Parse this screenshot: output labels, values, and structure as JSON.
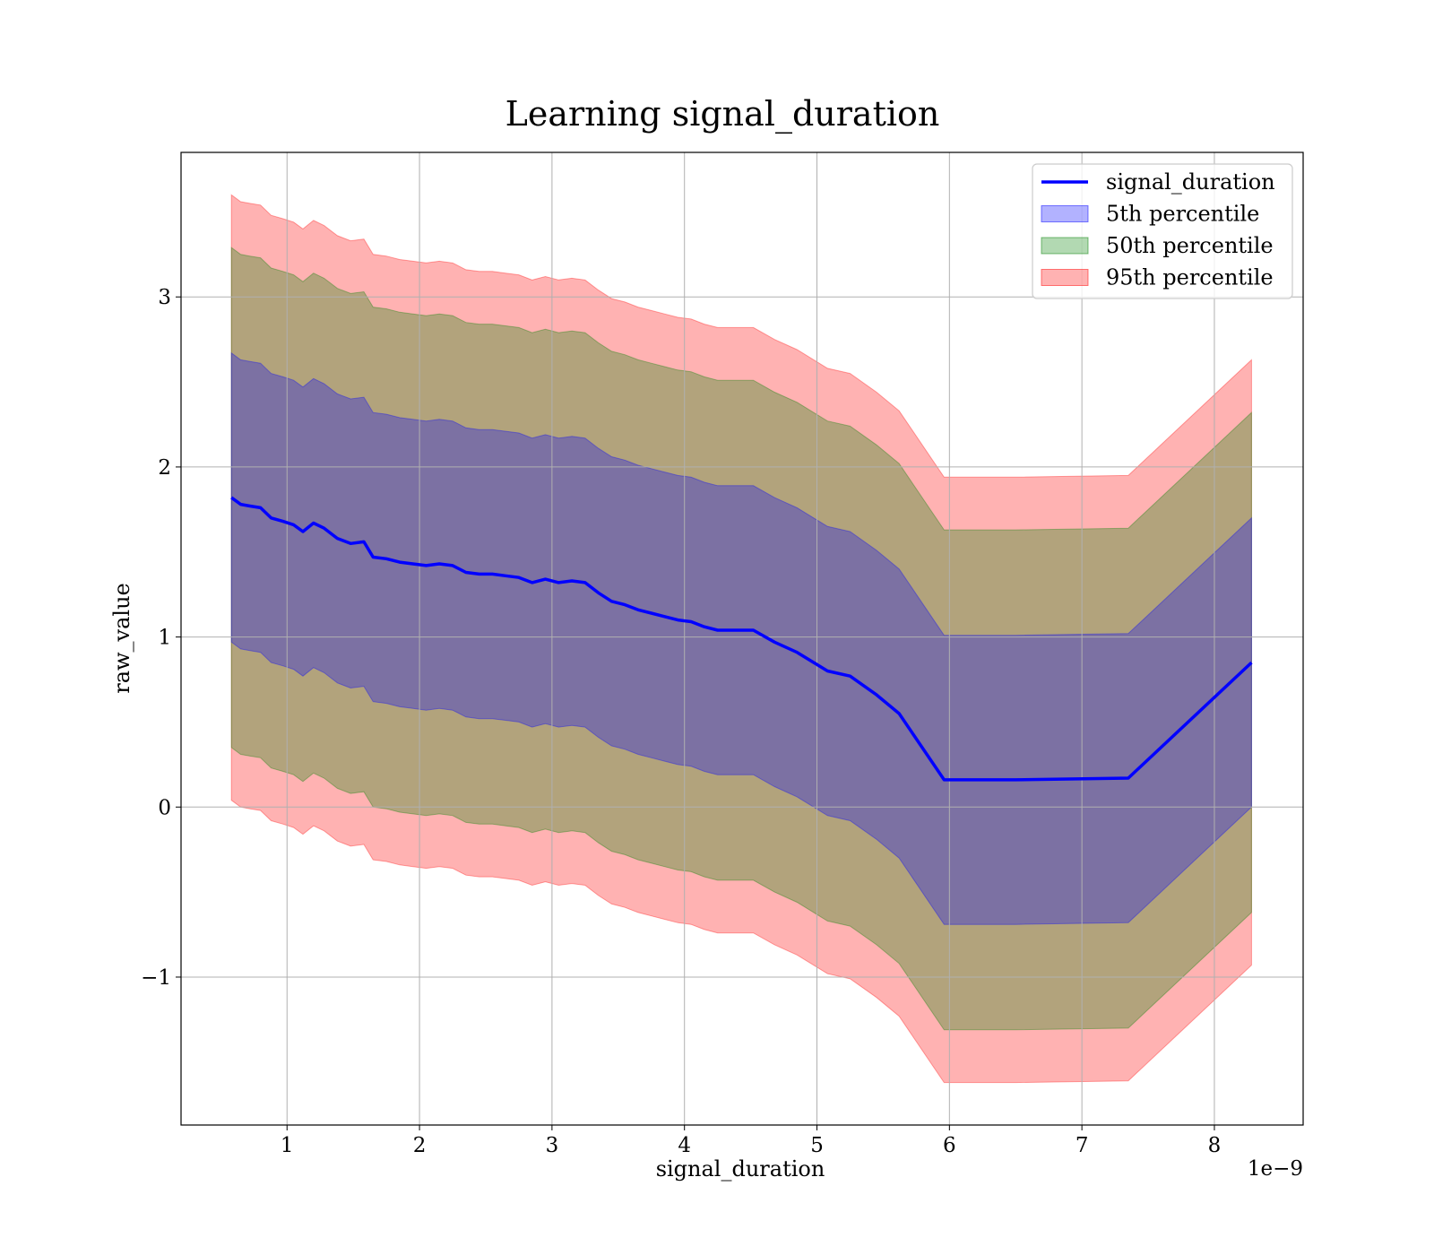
{
  "chart_data": {
    "type": "area",
    "title": "Learning signal_duration",
    "xlabel": "signal_duration",
    "ylabel": "raw_value",
    "x_offset_label": "1e−9",
    "xlim": [
      0.2,
      8.67
    ],
    "ylim": [
      -1.87,
      3.85
    ],
    "x_ticks": [
      1,
      2,
      3,
      4,
      5,
      6,
      7,
      8
    ],
    "x_tick_labels": [
      "1",
      "2",
      "3",
      "4",
      "5",
      "6",
      "7",
      "8"
    ],
    "y_ticks": [
      -1,
      0,
      1,
      2,
      3
    ],
    "y_tick_labels": [
      "−1",
      "0",
      "1",
      "2",
      "3"
    ],
    "grid": true,
    "legend_position": "top-right",
    "x": [
      0.58,
      0.65,
      0.72,
      0.8,
      0.88,
      0.97,
      1.05,
      1.12,
      1.2,
      1.28,
      1.38,
      1.48,
      1.58,
      1.65,
      1.75,
      1.85,
      1.95,
      2.05,
      2.15,
      2.25,
      2.35,
      2.45,
      2.55,
      2.65,
      2.75,
      2.85,
      2.95,
      3.05,
      3.15,
      3.25,
      3.35,
      3.45,
      3.55,
      3.65,
      3.75,
      3.85,
      3.95,
      4.05,
      4.15,
      4.25,
      4.35,
      4.52,
      4.68,
      4.85,
      5.08,
      5.25,
      5.45,
      5.62,
      5.96,
      6.5,
      7.35,
      8.28
    ],
    "series": [
      {
        "name": "signal_duration",
        "role": "mean",
        "color": "#0000ff",
        "values": [
          1.82,
          1.78,
          1.77,
          1.76,
          1.7,
          1.68,
          1.66,
          1.62,
          1.67,
          1.64,
          1.58,
          1.55,
          1.56,
          1.47,
          1.46,
          1.44,
          1.43,
          1.42,
          1.43,
          1.42,
          1.38,
          1.37,
          1.37,
          1.36,
          1.35,
          1.32,
          1.34,
          1.32,
          1.33,
          1.32,
          1.26,
          1.21,
          1.19,
          1.16,
          1.14,
          1.12,
          1.1,
          1.09,
          1.06,
          1.04,
          1.04,
          1.04,
          0.97,
          0.91,
          0.8,
          0.77,
          0.66,
          0.55,
          0.16,
          0.16,
          0.17,
          0.85
        ]
      }
    ],
    "bands": [
      {
        "name": "5th percentile",
        "color": "#0000ff",
        "alpha": 0.3,
        "half_width": [
          0.85,
          0.85,
          0.85,
          0.85,
          0.85,
          0.85,
          0.85,
          0.85,
          0.85,
          0.85,
          0.85,
          0.85,
          0.85,
          0.85,
          0.85,
          0.85,
          0.85,
          0.85,
          0.85,
          0.85,
          0.85,
          0.85,
          0.85,
          0.85,
          0.85,
          0.85,
          0.85,
          0.85,
          0.85,
          0.85,
          0.85,
          0.85,
          0.85,
          0.85,
          0.85,
          0.85,
          0.85,
          0.85,
          0.85,
          0.85,
          0.85,
          0.85,
          0.85,
          0.85,
          0.85,
          0.85,
          0.85,
          0.85,
          0.85,
          0.85,
          0.85,
          0.85
        ]
      },
      {
        "name": "50th percentile",
        "color": "#008000",
        "alpha": 0.3,
        "half_width": [
          1.47,
          1.47,
          1.47,
          1.47,
          1.47,
          1.47,
          1.47,
          1.47,
          1.47,
          1.47,
          1.47,
          1.47,
          1.47,
          1.47,
          1.47,
          1.47,
          1.47,
          1.47,
          1.47,
          1.47,
          1.47,
          1.47,
          1.47,
          1.47,
          1.47,
          1.47,
          1.47,
          1.47,
          1.47,
          1.47,
          1.47,
          1.47,
          1.47,
          1.47,
          1.47,
          1.47,
          1.47,
          1.47,
          1.47,
          1.47,
          1.47,
          1.47,
          1.47,
          1.47,
          1.47,
          1.47,
          1.47,
          1.47,
          1.47,
          1.47,
          1.47,
          1.47
        ]
      },
      {
        "name": "95th percentile",
        "color": "#ff0000",
        "alpha": 0.3,
        "half_width": [
          1.78,
          1.78,
          1.78,
          1.78,
          1.78,
          1.78,
          1.78,
          1.78,
          1.78,
          1.78,
          1.78,
          1.78,
          1.78,
          1.78,
          1.78,
          1.78,
          1.78,
          1.78,
          1.78,
          1.78,
          1.78,
          1.78,
          1.78,
          1.78,
          1.78,
          1.78,
          1.78,
          1.78,
          1.78,
          1.78,
          1.78,
          1.78,
          1.78,
          1.78,
          1.78,
          1.78,
          1.78,
          1.78,
          1.78,
          1.78,
          1.78,
          1.78,
          1.78,
          1.78,
          1.78,
          1.78,
          1.78,
          1.78,
          1.78,
          1.78,
          1.78,
          1.78
        ]
      }
    ],
    "legend": [
      {
        "label": "signal_duration",
        "kind": "line",
        "color": "#0000ff"
      },
      {
        "label": "5th percentile",
        "kind": "patch",
        "color": "#0000ff",
        "alpha": 0.3
      },
      {
        "label": "50th percentile",
        "kind": "patch",
        "color": "#008000",
        "alpha": 0.3
      },
      {
        "label": "95th percentile",
        "kind": "patch",
        "color": "#ff0000",
        "alpha": 0.3
      }
    ]
  }
}
